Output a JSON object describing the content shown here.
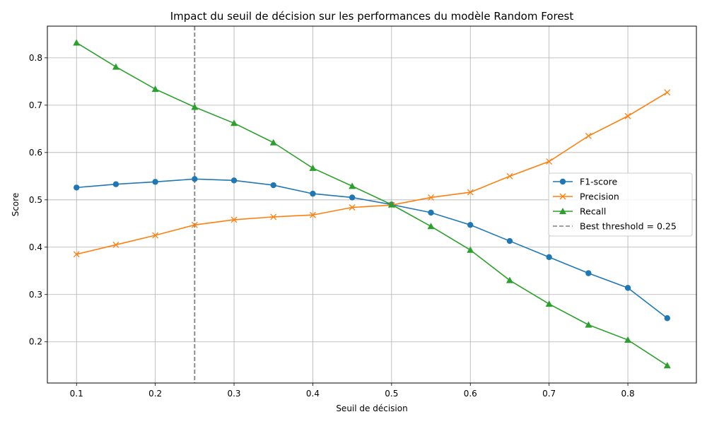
{
  "chart_data": {
    "type": "line",
    "title": "Impact du seuil de décision sur les performances du modèle Random Forest",
    "xlabel": "Seuil de décision",
    "ylabel": "Score",
    "xlim": [
      0.063,
      0.887
    ],
    "ylim": [
      0.113,
      0.867
    ],
    "x_ticks": [
      "0.1",
      "0.2",
      "0.3",
      "0.4",
      "0.5",
      "0.6",
      "0.7",
      "0.8"
    ],
    "y_ticks": [
      "0.2",
      "0.3",
      "0.4",
      "0.5",
      "0.6",
      "0.7",
      "0.8"
    ],
    "grid": true,
    "legend_position": "center-right",
    "x": [
      0.1,
      0.15,
      0.2,
      0.25,
      0.3,
      0.35,
      0.4,
      0.45,
      0.5,
      0.55,
      0.6,
      0.65,
      0.7,
      0.75,
      0.8,
      0.85
    ],
    "series": [
      {
        "name": "F1-score",
        "color": "#1f77b4",
        "marker": "circle",
        "values": [
          0.526,
          0.533,
          0.538,
          0.544,
          0.541,
          0.531,
          0.513,
          0.505,
          0.49,
          0.473,
          0.447,
          0.413,
          0.379,
          0.345,
          0.314,
          0.25
        ]
      },
      {
        "name": "Precision",
        "color": "#ff7f0e",
        "marker": "x",
        "values": [
          0.385,
          0.405,
          0.425,
          0.447,
          0.458,
          0.464,
          0.468,
          0.484,
          0.489,
          0.505,
          0.516,
          0.55,
          0.581,
          0.635,
          0.677,
          0.727
        ]
      },
      {
        "name": "Recall",
        "color": "#2ca02c",
        "marker": "triangle",
        "values": [
          0.832,
          0.781,
          0.734,
          0.696,
          0.662,
          0.621,
          0.567,
          0.529,
          0.49,
          0.444,
          0.394,
          0.33,
          0.28,
          0.236,
          0.204,
          0.15
        ]
      }
    ],
    "reference_line": {
      "name": "Best threshold = 0.25",
      "x": 0.25,
      "color": "#808080",
      "style": "dashed"
    }
  }
}
